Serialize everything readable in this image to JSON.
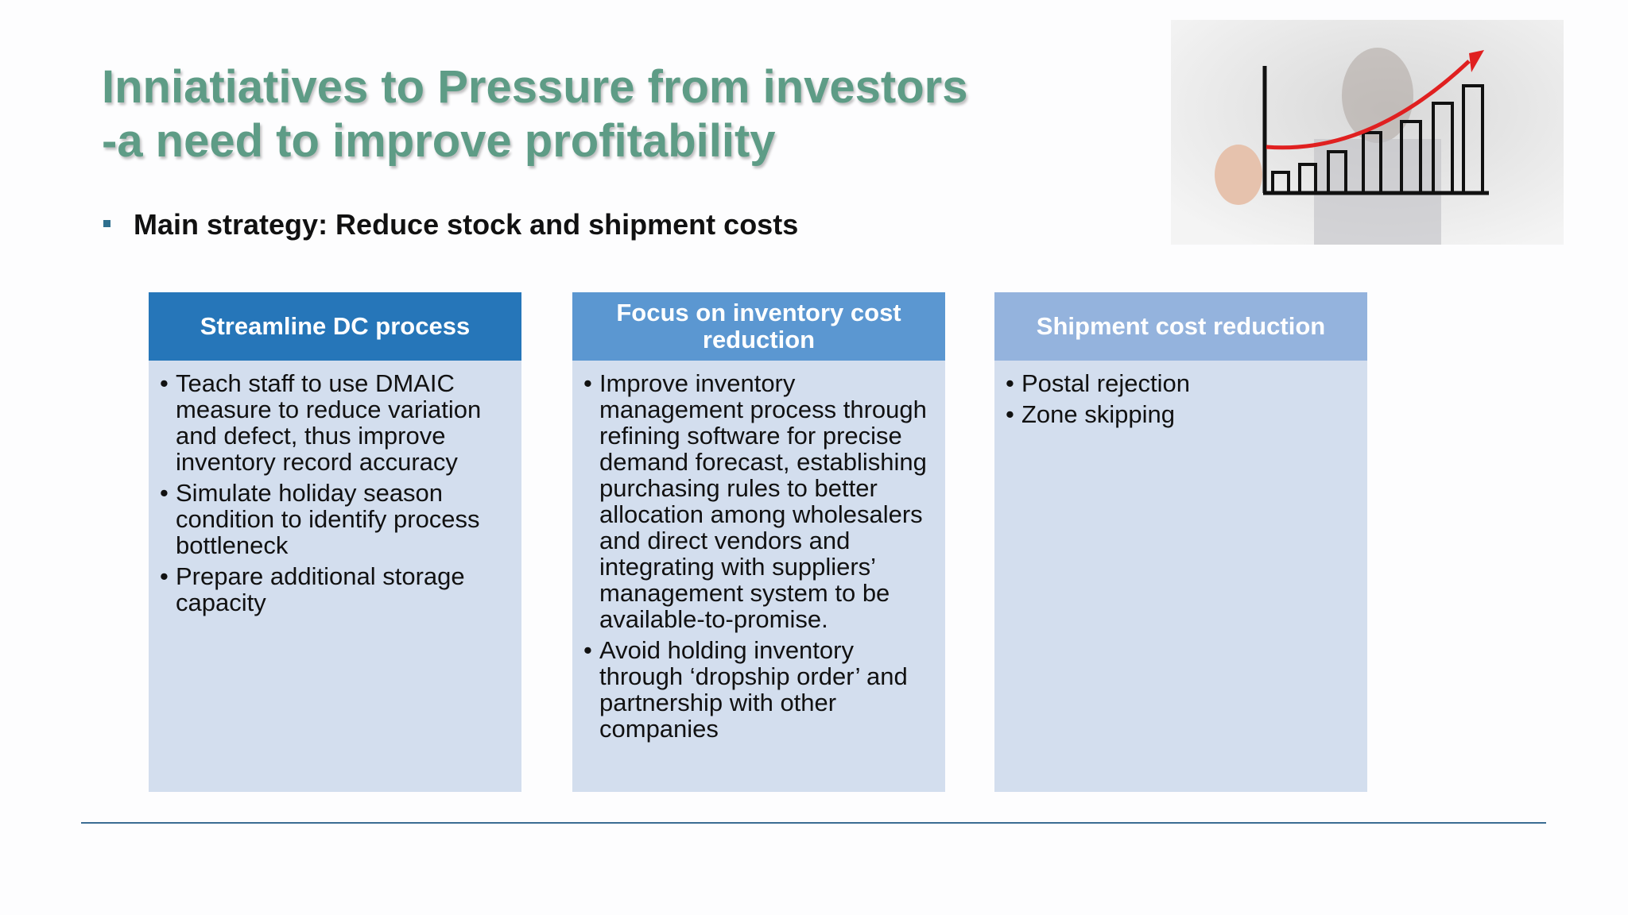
{
  "slide": {
    "title": [
      "Inniatiatives to Pressure from investors",
      "-a need to improve profitability"
    ],
    "bullet": "Main strategy: Reduce stock and shipment costs",
    "columns": [
      {
        "header": "Streamline DC process",
        "items": [
          "Teach staff to use DMAIC measure to reduce variation and defect, thus improve inventory record accuracy",
          "Simulate holiday season condition to identify process bottleneck",
          "Prepare additional storage capacity"
        ]
      },
      {
        "header": "Focus on inventory cost reduction",
        "items": [
          "Improve inventory management process through refining software for precise demand forecast, establishing purchasing rules to better allocation among wholesalers and direct vendors and integrating with suppliers’ management system to be available-to-promise.",
          "Avoid holding inventory through ‘dropship order’ and partnership with other companies"
        ]
      },
      {
        "header": "Shipment cost reduction",
        "items": [
          "Postal rejection",
          "Zone skipping"
        ]
      }
    ]
  }
}
